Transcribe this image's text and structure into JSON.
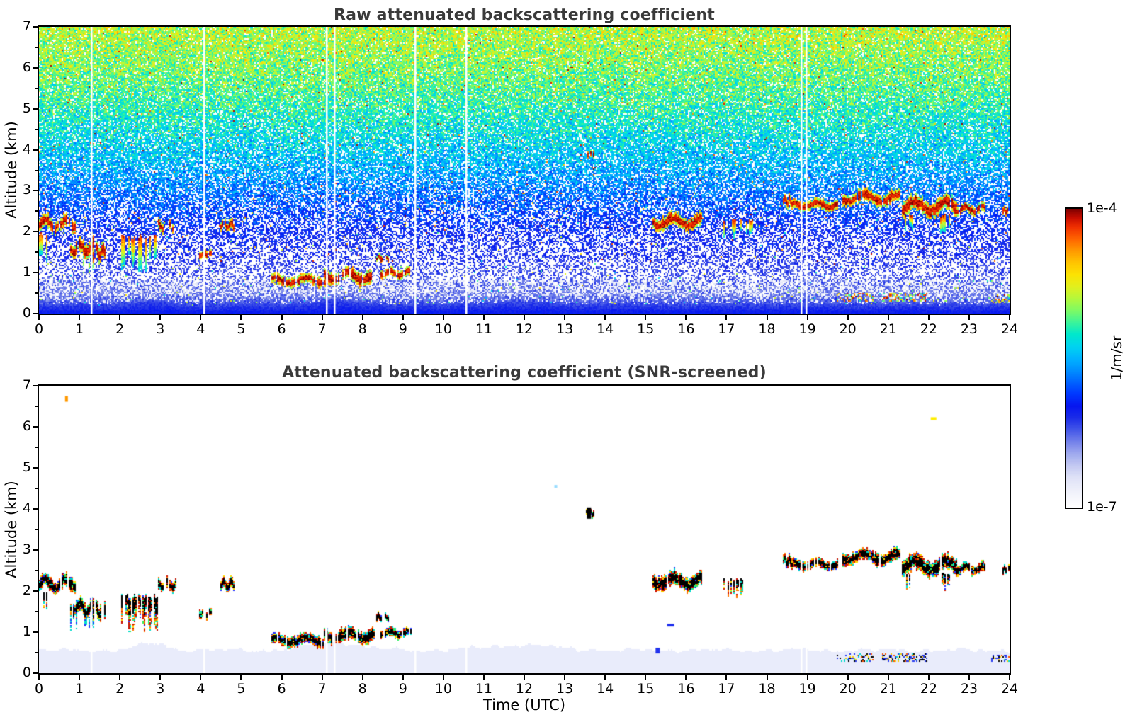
{
  "colorbar": {
    "top_label": "1e-4",
    "bottom_label": "1e-7",
    "unit": "1/m/sr",
    "scale": "log",
    "range": [
      1e-07,
      0.0001
    ],
    "stops": [
      [
        0.0,
        "#ffffff"
      ],
      [
        0.05,
        "#f1f2fb"
      ],
      [
        0.1,
        "#dfe2f7"
      ],
      [
        0.14,
        "#c3c9f2"
      ],
      [
        0.18,
        "#9fa9ee"
      ],
      [
        0.22,
        "#7381ea"
      ],
      [
        0.26,
        "#4356e8"
      ],
      [
        0.3,
        "#1b2ce8"
      ],
      [
        0.34,
        "#0616f0"
      ],
      [
        0.38,
        "#0038ff"
      ],
      [
        0.42,
        "#0064ff"
      ],
      [
        0.46,
        "#0090ff"
      ],
      [
        0.5,
        "#00b4ff"
      ],
      [
        0.54,
        "#00d4f0"
      ],
      [
        0.58,
        "#00e8cc"
      ],
      [
        0.62,
        "#3cf49a"
      ],
      [
        0.66,
        "#7efa64"
      ],
      [
        0.7,
        "#b4f83c"
      ],
      [
        0.74,
        "#e2f01e"
      ],
      [
        0.78,
        "#fce303"
      ],
      [
        0.82,
        "#ffc400"
      ],
      [
        0.86,
        "#ff9a00"
      ],
      [
        0.9,
        "#ff6400"
      ],
      [
        0.94,
        "#f03000"
      ],
      [
        0.97,
        "#c80e00"
      ],
      [
        1.0,
        "#7f0000"
      ]
    ]
  },
  "chart_data": [
    {
      "type": "heatmap",
      "style": "raw",
      "title": "Raw attenuated backscattering coefficient",
      "xlabel": "",
      "ylabel": "Altitude (km)",
      "xlim": [
        0,
        24
      ],
      "ylim": [
        0,
        7
      ],
      "xticks": [
        0,
        1,
        2,
        3,
        4,
        5,
        6,
        7,
        8,
        9,
        10,
        11,
        12,
        13,
        14,
        15,
        16,
        17,
        18,
        19,
        20,
        21,
        22,
        23,
        24
      ],
      "yticks": [
        0,
        1,
        2,
        3,
        4,
        5,
        6,
        7
      ],
      "y_minor_step": 0.5,
      "noise": {
        "mean_by_alt": [
          [
            0,
            0.33
          ],
          [
            0.12,
            0.33
          ],
          [
            0.25,
            0.26
          ],
          [
            0.5,
            0.22
          ],
          [
            0.9,
            0.26
          ],
          [
            1.4,
            0.3
          ],
          [
            2.0,
            0.34
          ],
          [
            2.6,
            0.4
          ],
          [
            3.2,
            0.46
          ],
          [
            4.0,
            0.53
          ],
          [
            5.0,
            0.6
          ],
          [
            6.0,
            0.66
          ],
          [
            7.0,
            0.71
          ]
        ],
        "white_by_alt": [
          [
            0,
            0
          ],
          [
            0.15,
            0.02
          ],
          [
            0.3,
            0.35
          ],
          [
            0.5,
            0.58
          ],
          [
            0.8,
            0.62
          ],
          [
            1.2,
            0.58
          ],
          [
            1.7,
            0.5
          ],
          [
            2.2,
            0.4
          ],
          [
            2.8,
            0.3
          ],
          [
            3.5,
            0.22
          ],
          [
            4.5,
            0.15
          ],
          [
            5.5,
            0.1
          ],
          [
            7,
            0.07
          ]
        ],
        "sigma_by_alt": [
          [
            0,
            0.02
          ],
          [
            0.3,
            0.04
          ],
          [
            1,
            0.05
          ],
          [
            2,
            0.06
          ],
          [
            3,
            0.07
          ],
          [
            4,
            0.08
          ],
          [
            7,
            0.1
          ]
        ]
      },
      "boundary_layer_top_km": 0.22,
      "bl_mounds": [
        {
          "t": 2.8,
          "w": 0.5,
          "amp": 0.45
        },
        {
          "t": 7.3,
          "w": 0.85,
          "amp": 0.5
        },
        {
          "t": 11.9,
          "w": 1.2,
          "amp": 0.3
        }
      ]
    },
    {
      "type": "heatmap",
      "style": "screened",
      "title": "Attenuated backscattering coefficient (SNR-screened)",
      "xlabel": "Time (UTC)",
      "ylabel": "Altitude (km)",
      "xlim": [
        0,
        24
      ],
      "ylim": [
        0,
        7
      ],
      "xticks": [
        0,
        1,
        2,
        3,
        4,
        5,
        6,
        7,
        8,
        9,
        10,
        11,
        12,
        13,
        14,
        15,
        16,
        17,
        18,
        19,
        20,
        21,
        22,
        23,
        24
      ],
      "yticks": [
        0,
        1,
        2,
        3,
        4,
        5,
        6,
        7
      ],
      "y_minor_step": 0.5,
      "bl_levels_km": [
        0.56,
        0.46,
        0.36,
        0.27,
        0.19,
        0.11
      ],
      "bl_colors": [
        "#e9ecfb",
        "#ccd2f8",
        "#a3aef3",
        "#6e7eee",
        "#3347e8",
        "#0a18d6"
      ],
      "bl_mounds": [
        {
          "t": 2.8,
          "w": 0.5,
          "amp": 0.3
        },
        {
          "t": 7.3,
          "w": 0.85,
          "amp": 0.35
        },
        {
          "t": 11.9,
          "w": 1.2,
          "amp": 0.22
        }
      ]
    }
  ],
  "features": [
    {
      "kind": "cloud",
      "t0": 0.0,
      "t1": 0.85,
      "alt0": 2.02,
      "alt1": 2.38
    },
    {
      "kind": "virga",
      "t0": 0.0,
      "t1": 0.15,
      "alt0": 1.3,
      "alt1": 2.0
    },
    {
      "kind": "cloud",
      "t0": 0.78,
      "t1": 1.32,
      "alt0": 1.42,
      "alt1": 1.8,
      "virga_to": 1.05
    },
    {
      "kind": "streak",
      "t0": 1.36,
      "t1": 1.58,
      "alt0": 1.35,
      "alt1": 1.72
    },
    {
      "kind": "virga",
      "t0": 2.05,
      "t1": 2.9,
      "alt0": 1.05,
      "alt1": 1.95
    },
    {
      "kind": "streak",
      "t0": 2.95,
      "t1": 3.35,
      "alt0": 2.05,
      "alt1": 2.3
    },
    {
      "kind": "streak",
      "t0": 3.98,
      "t1": 4.22,
      "alt0": 1.38,
      "alt1": 1.55
    },
    {
      "kind": "cloud",
      "t0": 4.5,
      "t1": 4.8,
      "alt0": 2.05,
      "alt1": 2.3
    },
    {
      "kind": "thincloud",
      "t0": 5.75,
      "t1": 7.05,
      "alt0": 0.7,
      "alt1": 0.95
    },
    {
      "kind": "thincloud",
      "t0": 7.05,
      "t1": 8.25,
      "alt0": 0.78,
      "alt1": 1.08
    },
    {
      "kind": "thincloud",
      "t0": 8.45,
      "t1": 9.15,
      "alt0": 0.9,
      "alt1": 1.1
    },
    {
      "kind": "streak",
      "t0": 8.35,
      "t1": 8.6,
      "alt0": 1.3,
      "alt1": 1.45
    },
    {
      "kind": "streak",
      "t0": 13.55,
      "t1": 13.68,
      "alt0": 3.82,
      "alt1": 3.98
    },
    {
      "kind": "cloud",
      "t0": 15.2,
      "t1": 16.35,
      "alt0": 2.08,
      "alt1": 2.45
    },
    {
      "kind": "virga",
      "t0": 16.95,
      "t1": 17.6,
      "alt0": 1.85,
      "alt1": 2.32,
      "sparse": true
    },
    {
      "kind": "cloud",
      "t0": 18.42,
      "t1": 18.6,
      "alt0": 2.6,
      "alt1": 2.9
    },
    {
      "kind": "thincloud",
      "t0": 18.65,
      "t1": 19.7,
      "alt0": 2.56,
      "alt1": 2.78
    },
    {
      "kind": "cloud",
      "t0": 19.9,
      "t1": 21.25,
      "alt0": 2.68,
      "alt1": 3.0
    },
    {
      "kind": "cloud",
      "t0": 21.35,
      "t1": 22.65,
      "alt0": 2.42,
      "alt1": 2.85
    },
    {
      "kind": "virga",
      "t0": 21.42,
      "t1": 21.58,
      "alt0": 2.05,
      "alt1": 2.45
    },
    {
      "kind": "virga",
      "t0": 22.3,
      "t1": 22.5,
      "alt0": 2.0,
      "alt1": 2.45
    },
    {
      "kind": "cloud",
      "t0": 22.7,
      "t1": 23.35,
      "alt0": 2.45,
      "alt1": 2.68
    },
    {
      "kind": "cloud",
      "t0": 23.85,
      "t1": 24.0,
      "alt0": 2.45,
      "alt1": 2.62
    },
    {
      "kind": "speckle",
      "t0": 19.75,
      "t1": 20.6,
      "alt0": 0.32,
      "alt1": 0.5
    },
    {
      "kind": "speckle",
      "t0": 20.85,
      "t1": 21.9,
      "alt0": 0.32,
      "alt1": 0.5
    },
    {
      "kind": "speckle",
      "t0": 23.55,
      "t1": 23.95,
      "alt0": 0.3,
      "alt1": 0.45
    }
  ],
  "data_gap_times": [
    1.3,
    4.08,
    7.12,
    7.3,
    9.3,
    10.57,
    18.85,
    18.98
  ],
  "screened_marks": [
    {
      "t": 0.68,
      "alt": 6.68,
      "color": "#ff9900",
      "w": 2,
      "h": 4
    },
    {
      "t": 22.12,
      "alt": 6.2,
      "color": "#ffee00",
      "w": 4,
      "h": 2
    },
    {
      "t": 15.3,
      "alt": 0.55,
      "color": "#2233ee",
      "w": 3,
      "h": 4
    },
    {
      "t": 15.62,
      "alt": 1.17,
      "color": "#2233ee",
      "w": 5,
      "h": 2
    },
    {
      "t": 12.78,
      "alt": 4.55,
      "color": "#99ddff",
      "w": 2,
      "h": 2
    },
    {
      "t": 13.6,
      "alt": 3.9,
      "color": "#000000",
      "w": 3,
      "h": 8
    }
  ]
}
